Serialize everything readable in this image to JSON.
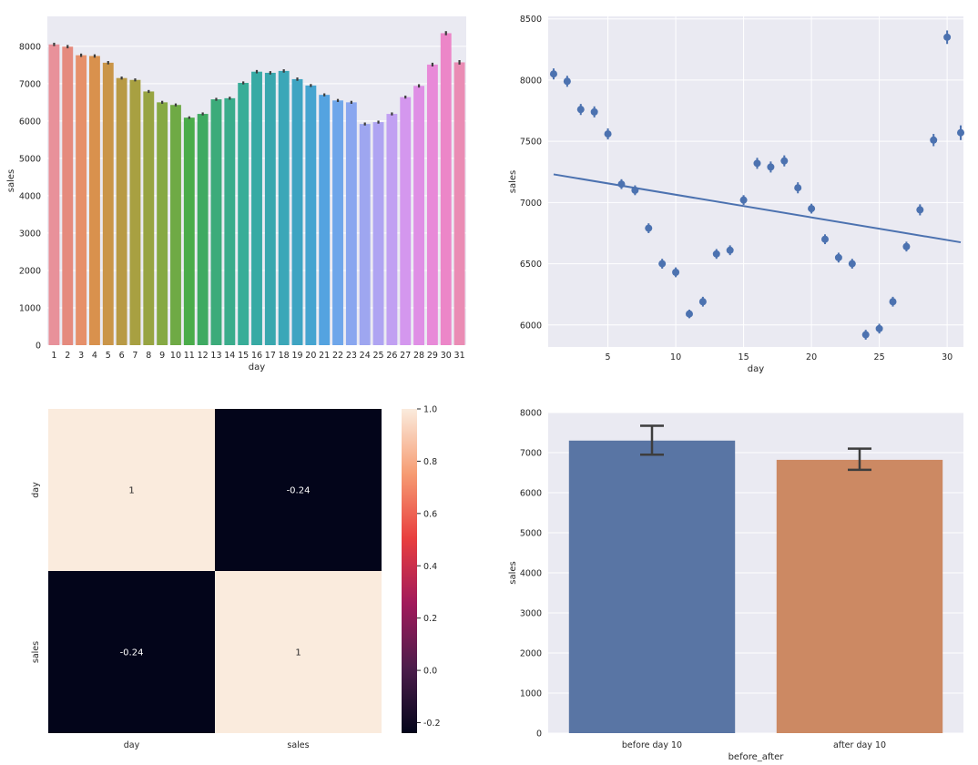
{
  "chart_data": [
    {
      "type": "bar",
      "xlabel": "day",
      "ylabel": "sales",
      "ylim": [
        0,
        8800
      ],
      "yticks": [
        0,
        1000,
        2000,
        3000,
        4000,
        5000,
        6000,
        7000,
        8000
      ],
      "grid": true,
      "categories": [
        1,
        2,
        3,
        4,
        5,
        6,
        7,
        8,
        9,
        10,
        11,
        12,
        13,
        14,
        15,
        16,
        17,
        18,
        19,
        20,
        21,
        22,
        23,
        24,
        25,
        26,
        27,
        28,
        29,
        30,
        31
      ],
      "values": [
        8050,
        7990,
        7760,
        7740,
        7560,
        7150,
        7100,
        6790,
        6500,
        6430,
        6090,
        6190,
        6580,
        6610,
        7020,
        7320,
        7290,
        7340,
        7120,
        6950,
        6700,
        6550,
        6500,
        5920,
        5970,
        6190,
        6640,
        6940,
        7510,
        8350,
        7570
      ],
      "errors": [
        45,
        45,
        45,
        45,
        45,
        40,
        40,
        40,
        40,
        40,
        35,
        40,
        40,
        40,
        40,
        45,
        45,
        45,
        45,
        40,
        40,
        40,
        40,
        40,
        40,
        40,
        40,
        45,
        50,
        55,
        60
      ],
      "colors": [
        "#e8919a",
        "#e58a7e",
        "#e6906a",
        "#d9914d",
        "#ca9548",
        "#b89a45",
        "#a8a041",
        "#97a442",
        "#86a944",
        "#6faa45",
        "#4aac4a",
        "#3faa62",
        "#3cab7a",
        "#3aac8b",
        "#38ad98",
        "#37aaa4",
        "#39a7ae",
        "#3ba7b8",
        "#3ea4c2",
        "#45a4d0",
        "#54a3e0",
        "#6ea6ea",
        "#89a6ef",
        "#9ea6f0",
        "#afa4f2",
        "#c1a0f2",
        "#d497ee",
        "#df8fe5",
        "#e88ad8",
        "#ec86c8",
        "#ea8cb4"
      ]
    },
    {
      "type": "scatter",
      "xlabel": "day",
      "ylabel": "sales",
      "xlim": [
        0.6,
        31.2
      ],
      "ylim": [
        5820,
        8520
      ],
      "xticks": [
        5,
        10,
        15,
        20,
        25,
        30
      ],
      "yticks": [
        6000,
        6500,
        7000,
        7500,
        8000,
        8500
      ],
      "grid": true,
      "x": [
        1,
        2,
        3,
        4,
        5,
        6,
        7,
        8,
        9,
        10,
        11,
        12,
        13,
        14,
        15,
        16,
        17,
        18,
        19,
        20,
        21,
        22,
        23,
        24,
        25,
        26,
        27,
        28,
        29,
        30,
        31
      ],
      "y": [
        8050,
        7990,
        7760,
        7740,
        7560,
        7150,
        7100,
        6790,
        6500,
        6430,
        6090,
        6190,
        6580,
        6610,
        7020,
        7320,
        7290,
        7340,
        7120,
        6950,
        6700,
        6550,
        6500,
        5920,
        5970,
        6190,
        6640,
        6940,
        7510,
        8350,
        7570
      ],
      "errors": [
        45,
        45,
        45,
        45,
        45,
        40,
        40,
        40,
        40,
        40,
        35,
        40,
        40,
        40,
        40,
        45,
        45,
        45,
        45,
        40,
        40,
        40,
        40,
        40,
        40,
        40,
        40,
        45,
        50,
        55,
        60
      ],
      "regression": {
        "x": [
          1,
          31
        ],
        "y": [
          7230,
          6675
        ]
      },
      "color": "#4c72b0"
    },
    {
      "type": "heatmap",
      "rows": [
        "day",
        "sales"
      ],
      "cols": [
        "day",
        "sales"
      ],
      "values": [
        [
          1,
          -0.24
        ],
        [
          -0.24,
          1
        ]
      ],
      "labels": [
        [
          "1",
          "-0.24"
        ],
        [
          "-0.24",
          "1"
        ]
      ],
      "colorbar": {
        "min": -0.24,
        "max": 1.0,
        "ticks": [
          1.0,
          0.8,
          0.6,
          0.4,
          0.2,
          0.0,
          -0.2
        ],
        "tick_labels": [
          "1.0",
          "0.8",
          "0.6",
          "0.4",
          "0.2",
          "0.0",
          "-0.2"
        ]
      },
      "colors": {
        "high": "#faebdd",
        "low": "#03051a"
      }
    },
    {
      "type": "bar",
      "xlabel": "before_after",
      "ylabel": "sales",
      "ylim": [
        0,
        8000
      ],
      "yticks": [
        0,
        1000,
        2000,
        3000,
        4000,
        5000,
        6000,
        7000,
        8000
      ],
      "grid": true,
      "categories": [
        "before day 10",
        "after day 10"
      ],
      "values": [
        7300,
        6820
      ],
      "error_low": [
        6950,
        6570
      ],
      "error_high": [
        7670,
        7100
      ],
      "colors": [
        "#5975a4",
        "#cc8963"
      ]
    }
  ]
}
